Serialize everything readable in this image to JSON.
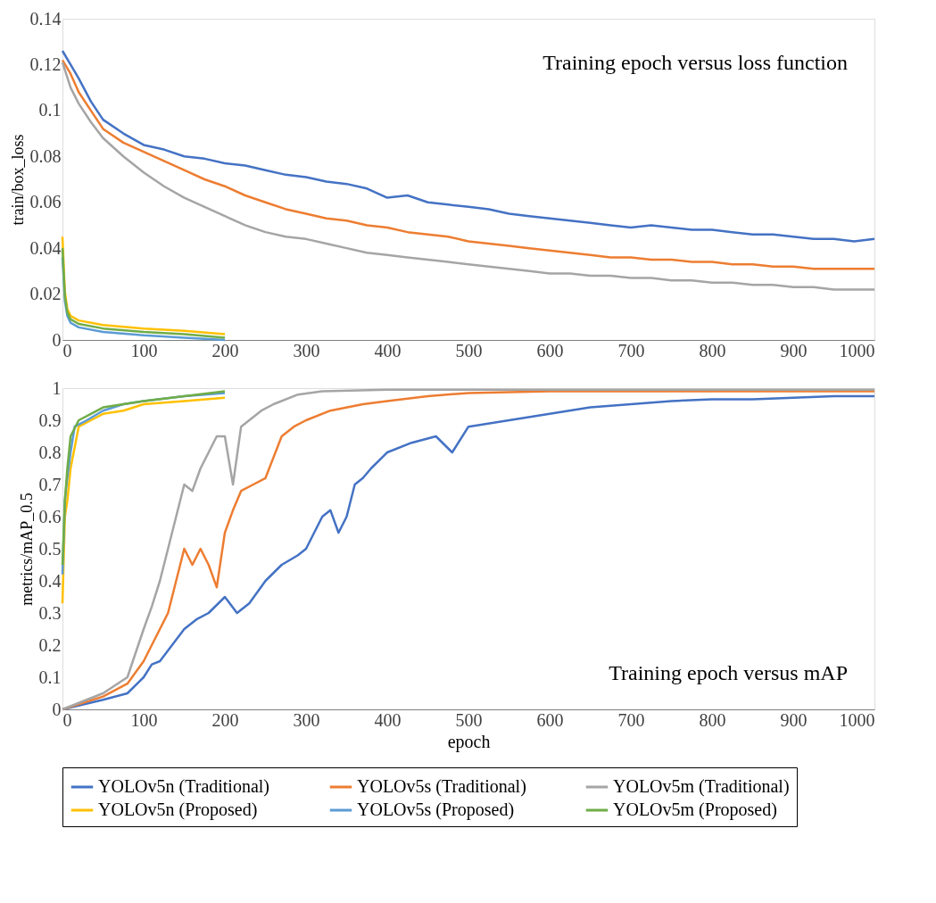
{
  "chart_data": [
    {
      "type": "line",
      "ylabel": "train/box_loss",
      "xlim": [
        0,
        1000
      ],
      "xticks": [
        0,
        100,
        200,
        300,
        400,
        500,
        600,
        700,
        800,
        900,
        1000
      ],
      "ylim": [
        0,
        0.14
      ],
      "yticks": [
        0,
        0.02,
        0.04,
        0.06,
        0.08,
        0.1,
        0.12,
        0.14
      ],
      "grid": false,
      "legend": "bottom",
      "line_style": "solid",
      "marker": "none",
      "annotations": [
        "Training epoch versus loss function"
      ],
      "series": [
        {
          "name": "YOLOv5n (Traditional)",
          "color": "#4472c4",
          "x": [
            0,
            10,
            20,
            35,
            50,
            75,
            100,
            125,
            150,
            175,
            200,
            225,
            250,
            275,
            300,
            325,
            350,
            375,
            400,
            425,
            450,
            475,
            500,
            525,
            550,
            575,
            600,
            625,
            650,
            675,
            700,
            725,
            750,
            775,
            800,
            825,
            850,
            875,
            900,
            925,
            950,
            975,
            1000
          ],
          "values": [
            0.126,
            0.12,
            0.114,
            0.104,
            0.096,
            0.09,
            0.085,
            0.083,
            0.08,
            0.079,
            0.077,
            0.076,
            0.074,
            0.072,
            0.071,
            0.069,
            0.068,
            0.066,
            0.062,
            0.063,
            0.06,
            0.059,
            0.058,
            0.057,
            0.055,
            0.054,
            0.053,
            0.052,
            0.051,
            0.05,
            0.049,
            0.05,
            0.049,
            0.048,
            0.048,
            0.047,
            0.046,
            0.046,
            0.045,
            0.044,
            0.044,
            0.043,
            0.044
          ]
        },
        {
          "name": "YOLOv5s (Traditional)",
          "color": "#ed7d31",
          "x": [
            0,
            10,
            20,
            35,
            50,
            75,
            100,
            125,
            150,
            175,
            200,
            225,
            250,
            275,
            300,
            325,
            350,
            375,
            400,
            425,
            450,
            475,
            500,
            525,
            550,
            575,
            600,
            625,
            650,
            675,
            700,
            725,
            750,
            775,
            800,
            825,
            850,
            875,
            900,
            925,
            950,
            975,
            1000
          ],
          "values": [
            0.122,
            0.116,
            0.108,
            0.1,
            0.092,
            0.086,
            0.082,
            0.078,
            0.074,
            0.07,
            0.067,
            0.063,
            0.06,
            0.057,
            0.055,
            0.053,
            0.052,
            0.05,
            0.049,
            0.047,
            0.046,
            0.045,
            0.043,
            0.042,
            0.041,
            0.04,
            0.039,
            0.038,
            0.037,
            0.036,
            0.036,
            0.035,
            0.035,
            0.034,
            0.034,
            0.033,
            0.033,
            0.032,
            0.032,
            0.031,
            0.031,
            0.031,
            0.031
          ]
        },
        {
          "name": "YOLOv5m (Traditional)",
          "color": "#a5a5a5",
          "x": [
            0,
            10,
            20,
            35,
            50,
            75,
            100,
            125,
            150,
            175,
            200,
            225,
            250,
            275,
            300,
            325,
            350,
            375,
            400,
            425,
            450,
            475,
            500,
            525,
            550,
            575,
            600,
            625,
            650,
            675,
            700,
            725,
            750,
            775,
            800,
            825,
            850,
            875,
            900,
            925,
            950,
            975,
            1000
          ],
          "values": [
            0.121,
            0.11,
            0.103,
            0.095,
            0.088,
            0.08,
            0.073,
            0.067,
            0.062,
            0.058,
            0.054,
            0.05,
            0.047,
            0.045,
            0.044,
            0.042,
            0.04,
            0.038,
            0.037,
            0.036,
            0.035,
            0.034,
            0.033,
            0.032,
            0.031,
            0.03,
            0.029,
            0.029,
            0.028,
            0.028,
            0.027,
            0.027,
            0.026,
            0.026,
            0.025,
            0.025,
            0.024,
            0.024,
            0.023,
            0.023,
            0.022,
            0.022,
            0.022
          ]
        },
        {
          "name": "YOLOv5n  (Proposed)",
          "color": "#ffc000",
          "x": [
            0,
            3,
            6,
            10,
            20,
            50,
            100,
            150,
            200
          ],
          "values": [
            0.045,
            0.021,
            0.0135,
            0.0105,
            0.0085,
            0.0065,
            0.005,
            0.004,
            0.0025
          ]
        },
        {
          "name": "YOLOv5s  (Proposed)",
          "color": "#5b9bd5",
          "x": [
            0,
            3,
            6,
            10,
            20,
            50,
            100,
            150,
            200
          ],
          "values": [
            0.036,
            0.017,
            0.0105,
            0.0075,
            0.0055,
            0.0035,
            0.002,
            0.001,
            0
          ]
        },
        {
          "name": "YOLOv5m  (Proposed)",
          "color": "#70ad47",
          "x": [
            0,
            3,
            6,
            10,
            20,
            50,
            100,
            150,
            200
          ],
          "values": [
            0.04,
            0.019,
            0.012,
            0.009,
            0.007,
            0.005,
            0.0035,
            0.0025,
            0.001
          ]
        }
      ]
    },
    {
      "type": "line",
      "xlabel": "epoch",
      "ylabel": "metrics/mAP_0.5",
      "xlim": [
        0,
        1000
      ],
      "xticks": [
        0,
        100,
        200,
        300,
        400,
        500,
        600,
        700,
        800,
        900,
        1000
      ],
      "ylim": [
        0,
        1
      ],
      "yticks": [
        0,
        0.1,
        0.2,
        0.3,
        0.4,
        0.5,
        0.6,
        0.7,
        0.8,
        0.9,
        1
      ],
      "grid": false,
      "legend": "bottom",
      "line_style": "solid",
      "marker": "none",
      "annotations": [
        "Training epoch versus mAP"
      ],
      "series": [
        {
          "name": "YOLOv5n (Traditional)",
          "color": "#4472c4",
          "x": [
            0,
            50,
            80,
            100,
            110,
            120,
            135,
            150,
            165,
            180,
            200,
            215,
            230,
            250,
            270,
            290,
            300,
            310,
            320,
            330,
            340,
            350,
            360,
            370,
            380,
            400,
            430,
            460,
            480,
            500,
            550,
            600,
            650,
            700,
            750,
            800,
            850,
            900,
            950,
            1000
          ],
          "values": [
            0,
            0.03,
            0.05,
            0.1,
            0.14,
            0.15,
            0.2,
            0.25,
            0.28,
            0.3,
            0.35,
            0.3,
            0.33,
            0.4,
            0.45,
            0.48,
            0.5,
            0.55,
            0.6,
            0.62,
            0.55,
            0.6,
            0.7,
            0.72,
            0.75,
            0.8,
            0.83,
            0.85,
            0.8,
            0.88,
            0.9,
            0.92,
            0.94,
            0.95,
            0.96,
            0.965,
            0.965,
            0.97,
            0.975,
            0.975
          ]
        },
        {
          "name": "YOLOv5s (Traditional)",
          "color": "#ed7d31",
          "x": [
            0,
            50,
            80,
            100,
            120,
            130,
            140,
            150,
            160,
            170,
            180,
            190,
            200,
            210,
            220,
            235,
            250,
            270,
            285,
            300,
            330,
            370,
            400,
            450,
            500,
            600,
            700,
            800,
            900,
            1000
          ],
          "values": [
            0,
            0.04,
            0.08,
            0.15,
            0.25,
            0.3,
            0.4,
            0.5,
            0.45,
            0.5,
            0.45,
            0.38,
            0.55,
            0.62,
            0.68,
            0.7,
            0.72,
            0.85,
            0.88,
            0.9,
            0.93,
            0.95,
            0.96,
            0.975,
            0.985,
            0.99,
            0.99,
            0.99,
            0.99,
            0.99
          ]
        },
        {
          "name": "YOLOv5m (Traditional)",
          "color": "#a5a5a5",
          "x": [
            0,
            50,
            80,
            100,
            110,
            120,
            130,
            140,
            150,
            160,
            170,
            180,
            190,
            200,
            210,
            220,
            230,
            245,
            260,
            290,
            320,
            400,
            500,
            600,
            700,
            800,
            900,
            1000
          ],
          "values": [
            0,
            0.05,
            0.1,
            0.25,
            0.32,
            0.4,
            0.5,
            0.6,
            0.7,
            0.68,
            0.75,
            0.8,
            0.85,
            0.85,
            0.7,
            0.88,
            0.9,
            0.93,
            0.95,
            0.98,
            0.99,
            0.995,
            0.995,
            0.995,
            0.995,
            0.995,
            0.995,
            0.995
          ]
        },
        {
          "name": "YOLOv5n  (Proposed)",
          "color": "#ffc000",
          "x": [
            0,
            3,
            6,
            10,
            20,
            35,
            50,
            75,
            100,
            150,
            200
          ],
          "values": [
            0.33,
            0.6,
            0.65,
            0.75,
            0.88,
            0.9,
            0.92,
            0.93,
            0.95,
            0.96,
            0.97
          ]
        },
        {
          "name": "YOLOv5s  (Proposed)",
          "color": "#5b9bd5",
          "x": [
            0,
            3,
            5,
            10,
            15,
            30,
            50,
            75,
            100,
            150,
            200
          ],
          "values": [
            0.42,
            0.65,
            0.7,
            0.8,
            0.88,
            0.9,
            0.93,
            0.95,
            0.96,
            0.975,
            0.985
          ]
        },
        {
          "name": "YOLOv5m  (Proposed)",
          "color": "#70ad47",
          "x": [
            0,
            3,
            6,
            10,
            20,
            35,
            50,
            75,
            100,
            150,
            200
          ],
          "values": [
            0.45,
            0.65,
            0.75,
            0.85,
            0.9,
            0.92,
            0.94,
            0.95,
            0.96,
            0.975,
            0.99
          ]
        }
      ]
    }
  ]
}
